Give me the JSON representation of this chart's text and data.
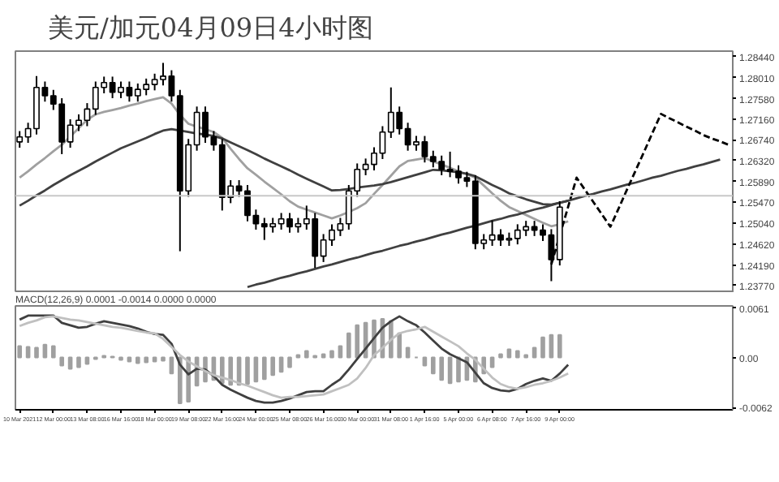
{
  "chart_data": [
    {
      "type": "candlestick",
      "title": "美元/加元04月09日4小时图",
      "tick_labels": "y",
      "categories": [
        null,
        null,
        null,
        null,
        null,
        null,
        null,
        null,
        null,
        null,
        null,
        null,
        null,
        null,
        null,
        null,
        null,
        null,
        null,
        null,
        null,
        null,
        null,
        null,
        null,
        null,
        null,
        null,
        null,
        null,
        null,
        null,
        null,
        null,
        null,
        null,
        null,
        null,
        null,
        null,
        null,
        null,
        null,
        null,
        null,
        null,
        null,
        null,
        null,
        null,
        null,
        null,
        null,
        null,
        null,
        null,
        null,
        null,
        null,
        null,
        null,
        null,
        null,
        null,
        null,
        null,
        null,
        null,
        null,
        null,
        null,
        null,
        null,
        null,
        null,
        null,
        null,
        null,
        null,
        null,
        null,
        null,
        null,
        null,
        null
      ],
      "ohlc": [
        [
          1.267,
          1.2692,
          1.2658,
          1.268
        ],
        [
          1.268,
          1.2709,
          1.2668,
          1.2697
        ],
        [
          1.2697,
          1.2804,
          1.2685,
          1.2781
        ],
        [
          1.2781,
          1.2793,
          1.2752,
          1.2764
        ],
        [
          1.2764,
          1.2776,
          1.2735,
          1.2747
        ],
        [
          1.2747,
          1.2759,
          1.2645,
          1.267
        ],
        [
          1.267,
          1.2716,
          1.2658,
          1.2704
        ],
        [
          1.2704,
          1.2726,
          1.2692,
          1.2714
        ],
        [
          1.2714,
          1.2749,
          1.2702,
          1.2737
        ],
        [
          1.2737,
          1.2793,
          1.2725,
          1.2781
        ],
        [
          1.2781,
          1.2803,
          1.2769,
          1.2791
        ],
        [
          1.2791,
          1.2803,
          1.2759,
          1.2771
        ],
        [
          1.2771,
          1.2793,
          1.2759,
          1.2781
        ],
        [
          1.2781,
          1.2793,
          1.2752,
          1.2764
        ],
        [
          1.2764,
          1.2789,
          1.2752,
          1.2777
        ],
        [
          1.2777,
          1.2799,
          1.2765,
          1.2787
        ],
        [
          1.2787,
          1.2809,
          1.2775,
          1.2797
        ],
        [
          1.2797,
          1.2831,
          1.2785,
          1.2804
        ],
        [
          1.2804,
          1.2816,
          1.2752,
          1.2764
        ],
        [
          1.2764,
          1.2776,
          1.2447,
          1.257
        ],
        [
          1.257,
          1.2676,
          1.2558,
          1.2664
        ],
        [
          1.2664,
          1.2742,
          1.2652,
          1.273
        ],
        [
          1.273,
          1.2742,
          1.2668,
          1.268
        ],
        [
          1.268,
          1.2692,
          1.2652,
          1.2664
        ],
        [
          1.2664,
          1.2676,
          1.253,
          1.2557
        ],
        [
          1.2557,
          1.2592,
          1.2545,
          1.258
        ],
        [
          1.258,
          1.2592,
          1.2558,
          1.257
        ],
        [
          1.257,
          1.2582,
          1.2508,
          1.252
        ],
        [
          1.252,
          1.2532,
          1.2491,
          1.2503
        ],
        [
          1.2503,
          1.2515,
          1.247,
          1.2497
        ],
        [
          1.2497,
          1.2515,
          1.2485,
          1.2503
        ],
        [
          1.2503,
          1.2525,
          1.2491,
          1.2513
        ],
        [
          1.2513,
          1.2525,
          1.2485,
          1.2497
        ],
        [
          1.2497,
          1.2515,
          1.2485,
          1.2503
        ],
        [
          1.2503,
          1.254,
          1.2491,
          1.2513
        ],
        [
          1.2513,
          1.2525,
          1.2413,
          1.2437
        ],
        [
          1.2437,
          1.2482,
          1.2425,
          1.247
        ],
        [
          1.247,
          1.2502,
          1.2458,
          1.249
        ],
        [
          1.249,
          1.2515,
          1.2478,
          1.2503
        ],
        [
          1.2503,
          1.2582,
          1.2491,
          1.257
        ],
        [
          1.257,
          1.2626,
          1.2558,
          1.2614
        ],
        [
          1.2614,
          1.2636,
          1.2602,
          1.2624
        ],
        [
          1.2624,
          1.2659,
          1.2612,
          1.2647
        ],
        [
          1.2647,
          1.2702,
          1.2635,
          1.269
        ],
        [
          1.269,
          1.2781,
          1.2678,
          1.273
        ],
        [
          1.273,
          1.2742,
          1.2685,
          1.2697
        ],
        [
          1.2697,
          1.2709,
          1.2652,
          1.2664
        ],
        [
          1.2664,
          1.2682,
          1.2652,
          1.267
        ],
        [
          1.267,
          1.2682,
          1.2628,
          1.264
        ],
        [
          1.264,
          1.2652,
          1.2618,
          1.263
        ],
        [
          1.263,
          1.2642,
          1.2602,
          1.2614
        ],
        [
          1.2614,
          1.265,
          1.2598,
          1.261
        ],
        [
          1.261,
          1.2622,
          1.2585,
          1.2597
        ],
        [
          1.2597,
          1.2609,
          1.2578,
          1.259
        ],
        [
          1.259,
          1.2602,
          1.2451,
          1.2463
        ],
        [
          1.2463,
          1.2482,
          1.2451,
          1.247
        ],
        [
          1.247,
          1.251,
          1.2458,
          1.248
        ],
        [
          1.248,
          1.2492,
          1.2458,
          1.247
        ],
        [
          1.247,
          1.2485,
          1.2458,
          1.2473
        ],
        [
          1.2473,
          1.2502,
          1.2461,
          1.249
        ],
        [
          1.249,
          1.2509,
          1.2478,
          1.2497
        ],
        [
          1.2497,
          1.2509,
          1.2478,
          1.249
        ],
        [
          1.249,
          1.2502,
          1.2468,
          1.248
        ],
        [
          1.248,
          1.2492,
          1.2386,
          1.243
        ],
        [
          1.243,
          1.2549,
          1.2418,
          1.2537
        ],
        null,
        null,
        null,
        null,
        null,
        null,
        null,
        null,
        null,
        null,
        null,
        null,
        null,
        null,
        null,
        null,
        null,
        null,
        null,
        null
      ],
      "series": [
        {
          "type": "line",
          "color": "#a0a0a0",
          "values": [
            1.2597,
            1.261,
            1.2624,
            1.2637,
            1.2651,
            1.2664,
            1.2681,
            1.2698,
            1.2715,
            1.2726,
            1.2731,
            1.2735,
            1.2739,
            1.2744,
            1.2748,
            1.2753,
            1.2757,
            1.2761,
            1.2748,
            1.2725,
            1.2707,
            1.2701,
            1.2696,
            1.269,
            1.2678,
            1.2656,
            1.2635,
            1.2616,
            1.2603,
            1.2589,
            1.2576,
            1.2563,
            1.2549,
            1.2538,
            1.2532,
            1.2526,
            1.252,
            1.2514,
            1.252,
            1.2527,
            1.2535,
            1.2545,
            1.2564,
            1.2582,
            1.2601,
            1.262,
            1.2631,
            1.2634,
            1.2637,
            1.263,
            1.2624,
            1.2617,
            1.261,
            1.2604,
            1.2597,
            1.2581,
            1.2565,
            1.255,
            1.2537,
            1.2529,
            1.2521,
            1.2513,
            1.2505,
            1.2498,
            1.2502,
            1.2508,
            null,
            null,
            null,
            null,
            null,
            null,
            null,
            null,
            null,
            null,
            null,
            null,
            null,
            null,
            null,
            null,
            null,
            null,
            null
          ]
        },
        {
          "type": "line",
          "color": "#404040",
          "values": [
            1.254,
            1.255,
            1.2561,
            1.2571,
            1.2582,
            1.2592,
            1.2602,
            1.2611,
            1.262,
            1.263,
            1.2639,
            1.2648,
            1.2657,
            1.2664,
            1.2671,
            1.2678,
            1.2686,
            1.2693,
            1.2696,
            1.2693,
            1.269,
            1.2687,
            1.2685,
            1.2682,
            1.2677,
            1.2669,
            1.2661,
            1.2653,
            1.2645,
            1.2636,
            1.2628,
            1.262,
            1.2612,
            1.2603,
            1.2595,
            1.2587,
            1.2579,
            1.2571,
            1.2572,
            1.2574,
            1.2577,
            1.2579,
            1.2581,
            1.2584,
            1.2588,
            1.2593,
            1.2598,
            1.2603,
            1.2608,
            1.2613,
            1.2612,
            1.261,
            1.2608,
            1.2605,
            1.26,
            1.2591,
            1.2582,
            1.2574,
            1.2565,
            1.2559,
            1.2553,
            1.2548,
            1.2543,
            1.2542,
            1.2546,
            1.255,
            null,
            null,
            null,
            null,
            null,
            null,
            null,
            null,
            null,
            null,
            null,
            null,
            null,
            null,
            null,
            null,
            null,
            null,
            null
          ]
        },
        {
          "type": "line",
          "color": "#404040",
          "values": [
            null,
            null,
            null,
            null,
            null,
            null,
            null,
            null,
            null,
            null,
            null,
            null,
            null,
            null,
            null,
            null,
            null,
            null,
            null,
            null,
            null,
            null,
            null,
            null,
            null,
            null,
            null,
            1.2374,
            1.2379,
            1.2383,
            1.2388,
            1.2393,
            1.2397,
            1.2402,
            1.2406,
            1.2411,
            1.2416,
            1.242,
            1.2425,
            1.243,
            1.2434,
            1.2439,
            1.2444,
            1.2448,
            1.2453,
            1.2458,
            1.2462,
            1.2467,
            1.2471,
            1.2476,
            1.2481,
            1.2485,
            1.249,
            1.2495,
            1.2499,
            1.2504,
            1.2509,
            1.2513,
            1.2518,
            1.2522,
            1.2527,
            1.2532,
            1.2536,
            1.2541,
            1.2546,
            1.255,
            1.2555,
            1.256,
            1.2564,
            1.2569,
            1.2573,
            1.2578,
            1.2583,
            1.2587,
            1.2592,
            1.2597,
            1.2601,
            1.2606,
            1.2611,
            1.2615,
            1.262,
            1.2624,
            1.2629,
            1.2634,
            null
          ]
        },
        {
          "type": "line",
          "color": "#000000",
          "line_style": "dashed",
          "values": [
            null,
            null,
            null,
            null,
            null,
            null,
            null,
            null,
            null,
            null,
            null,
            null,
            null,
            null,
            null,
            null,
            null,
            null,
            null,
            null,
            null,
            null,
            null,
            null,
            null,
            null,
            null,
            null,
            null,
            null,
            null,
            null,
            null,
            null,
            null,
            null,
            null,
            null,
            null,
            null,
            null,
            null,
            null,
            null,
            null,
            null,
            null,
            null,
            null,
            null,
            null,
            null,
            null,
            null,
            null,
            null,
            null,
            null,
            null,
            null,
            null,
            null,
            null,
            1.242,
            1.2479,
            1.2538,
            1.2597,
            1.2572,
            1.2547,
            1.2522,
            1.2497,
            1.2535,
            1.2574,
            1.2612,
            1.265,
            1.2689,
            1.2727,
            1.2718,
            1.271,
            1.2701,
            1.2693,
            1.2684,
            1.2677,
            1.2671,
            1.2664
          ]
        }
      ],
      "ref_lines": [
        {
          "axis": "y",
          "value": 1.256,
          "color": "#c8c8c8"
        }
      ],
      "ylim": [
        1.2362,
        1.2855
      ],
      "yticks": [
        {
          "value": 1.2844,
          "label": "1.28440"
        },
        {
          "value": 1.2801,
          "label": "1.28010"
        },
        {
          "value": 1.2758,
          "label": "1.27580"
        },
        {
          "value": 1.2716,
          "label": "1.27160"
        },
        {
          "value": 1.2674,
          "label": "1.26740"
        },
        {
          "value": 1.2632,
          "label": "1.26320"
        },
        {
          "value": 1.2589,
          "label": "1.25890"
        },
        {
          "value": 1.2547,
          "label": "1.25470"
        },
        {
          "value": 1.2504,
          "label": "1.25040"
        },
        {
          "value": 1.2462,
          "label": "1.24620"
        },
        {
          "value": 1.2419,
          "label": "1.24190"
        },
        {
          "value": 1.2377,
          "label": "1.23770"
        }
      ]
    },
    {
      "type": "bar",
      "title": "MACD(12,26,9) 0.0001 -0.0014 0.0000 0.0000",
      "categories": [
        "10 Mar 2021",
        null,
        null,
        null,
        "12 Mar 00:00",
        null,
        null,
        null,
        "13 Mar 08:00",
        null,
        null,
        null,
        "16 Mar 16:00",
        null,
        null,
        null,
        "18 Mar 00:00",
        null,
        null,
        null,
        "19 Mar 08:00",
        null,
        null,
        null,
        "22 Mar 16:00",
        null,
        null,
        null,
        "24 Mar 00:00",
        null,
        null,
        null,
        "25 Mar 08:00",
        null,
        null,
        null,
        "26 Mar 16:00",
        null,
        null,
        null,
        "30 Mar 00:00",
        null,
        null,
        null,
        "31 Mar 08:00",
        null,
        null,
        null,
        "1 Apr 16:00",
        null,
        null,
        null,
        "5 Apr 00:00",
        null,
        null,
        null,
        "6 Apr 08:00",
        null,
        null,
        null,
        "7 Apr 16:00",
        null,
        null,
        null,
        "9 Apr 00:00",
        null,
        null,
        null,
        null,
        null,
        null,
        null,
        null,
        null,
        null,
        null,
        null,
        null,
        null,
        null,
        null,
        null,
        null,
        null,
        null
      ],
      "series": [
        {
          "type": "bar",
          "color": "#a0a0a0",
          "values": [
            0.0014,
            0.0013,
            0.0012,
            0.0016,
            0.0014,
            -0.001,
            -0.0014,
            -0.0012,
            -0.0008,
            -0.0002,
            0.0002,
            0.0001,
            -0.0003,
            -0.0005,
            -0.0007,
            -0.0006,
            -0.0005,
            -0.0004,
            -0.002,
            -0.0057,
            -0.0055,
            -0.0035,
            -0.003,
            -0.0028,
            -0.0032,
            -0.0034,
            -0.0034,
            -0.0033,
            -0.003,
            -0.0027,
            -0.0022,
            -0.0018,
            -0.0012,
            0.0003,
            0.0008,
            0.0002,
            0.0004,
            0.0008,
            0.0014,
            0.003,
            0.004,
            0.0043,
            0.0046,
            0.0048,
            0.0045,
            0.003,
            0.0012,
            0.0,
            -0.001,
            -0.002,
            -0.0028,
            -0.0032,
            -0.003,
            -0.0028,
            -0.003,
            -0.002,
            -0.0012,
            0.0004,
            0.001,
            0.0008,
            0.0003,
            0.0012,
            0.0025,
            0.0028,
            0.0028,
            null,
            null,
            null,
            null,
            null,
            null,
            null,
            null,
            null,
            null,
            null,
            null,
            null,
            null,
            null,
            null,
            null,
            null,
            null,
            null
          ]
        },
        {
          "type": "line",
          "color": "#404040",
          "values": [
            0.0047,
            0.0052,
            0.0052,
            0.0052,
            0.0052,
            0.0043,
            0.004,
            0.0037,
            0.0038,
            0.0042,
            0.0045,
            0.0043,
            0.0041,
            0.0039,
            0.0036,
            0.0032,
            0.0029,
            0.0028,
            0.0017,
            -0.0009,
            -0.0021,
            -0.0014,
            -0.0015,
            -0.0023,
            -0.0034,
            -0.004,
            -0.0045,
            -0.005,
            -0.0054,
            -0.0056,
            -0.0056,
            -0.0054,
            -0.0051,
            -0.0047,
            -0.0043,
            -0.0042,
            -0.0042,
            -0.0034,
            -0.0027,
            -0.0015,
            -0.0002,
            0.0011,
            0.0024,
            0.0037,
            0.0045,
            0.0051,
            0.0045,
            0.004,
            0.0031,
            0.0021,
            0.0011,
            0.0004,
            -0.0001,
            -0.0006,
            -0.0019,
            -0.0032,
            -0.0038,
            -0.0041,
            -0.0042,
            -0.0039,
            -0.0033,
            -0.0029,
            -0.0026,
            -0.0029,
            -0.002,
            -0.0009,
            null,
            null,
            null,
            null,
            null,
            null,
            null,
            null,
            null,
            null,
            null,
            null,
            null,
            null,
            null,
            null,
            null,
            null,
            null
          ]
        },
        {
          "type": "line",
          "color": "#c0c0c0",
          "values": [
            0.0039,
            0.0043,
            0.0046,
            0.005,
            0.0051,
            0.0049,
            0.0047,
            0.0046,
            0.0044,
            0.0042,
            0.004,
            0.0038,
            0.0037,
            0.0035,
            0.0033,
            0.0031,
            0.003,
            0.0023,
            0.0013,
            0.0003,
            -0.0005,
            -0.0011,
            -0.0017,
            -0.0022,
            -0.0025,
            -0.0028,
            -0.0032,
            -0.0035,
            -0.0039,
            -0.0043,
            -0.0047,
            -0.005,
            -0.0049,
            -0.0049,
            -0.0048,
            -0.0047,
            -0.0046,
            -0.0042,
            -0.0038,
            -0.0034,
            -0.0026,
            -0.0013,
            0.0003,
            0.0012,
            0.0022,
            0.003,
            0.0033,
            0.0035,
            0.0038,
            0.0032,
            0.0026,
            0.002,
            0.0014,
            0.0005,
            -0.0003,
            -0.0014,
            -0.0025,
            -0.0033,
            -0.0037,
            -0.0039,
            -0.0037,
            -0.0034,
            -0.0032,
            -0.0029,
            -0.0025,
            -0.002,
            null,
            null,
            null,
            null,
            null,
            null,
            null,
            null,
            null,
            null,
            null,
            null,
            null,
            null,
            null,
            null,
            null,
            null,
            null
          ]
        }
      ],
      "ylim": [
        -0.0065,
        0.0064
      ],
      "yticks": [
        {
          "value": 0.0061,
          "label": "0.0061"
        },
        {
          "value": 0,
          "label": "0.00"
        },
        {
          "value": -0.0062,
          "label": "-0.0062"
        }
      ]
    }
  ]
}
